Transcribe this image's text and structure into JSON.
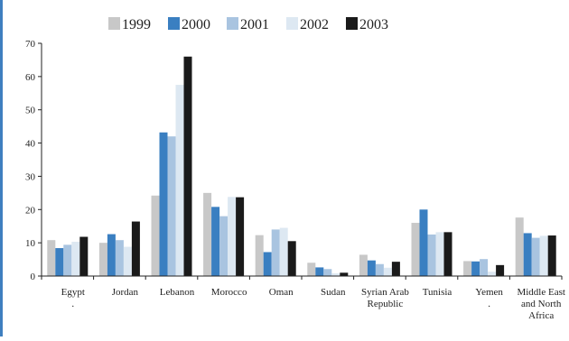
{
  "chart_data": {
    "type": "bar",
    "title": "",
    "xlabel": "",
    "ylabel": "",
    "ylim": [
      0,
      70
    ],
    "yticks": [
      0,
      10,
      20,
      30,
      40,
      50,
      60,
      70
    ],
    "legend_position": "top",
    "grid": false,
    "categories": [
      [
        "Egypt",
        "."
      ],
      [
        "Jordan"
      ],
      [
        "Lebanon"
      ],
      [
        "Morocco"
      ],
      [
        "Oman"
      ],
      [
        "Sudan"
      ],
      [
        "Syrian Arab",
        "Republic"
      ],
      [
        "Tunisia"
      ],
      [
        "Yemen",
        "."
      ],
      [
        "Middle East",
        "and North",
        "Africa"
      ]
    ],
    "series": [
      {
        "name": "1999",
        "color": "#c8c8c8",
        "values": [
          10.8,
          10,
          24.2,
          25,
          12.3,
          4,
          6.4,
          16,
          4.5,
          17.6
        ]
      },
      {
        "name": "2000",
        "color": "#3a7fc1",
        "values": [
          8.4,
          12.6,
          43.2,
          20.8,
          7.2,
          2.6,
          4.7,
          20,
          4.4,
          12.9
        ]
      },
      {
        "name": "2001",
        "color": "#a9c4e0",
        "values": [
          9.4,
          10.8,
          42,
          18,
          14,
          2.1,
          3.6,
          12.5,
          5.1,
          11.5
        ]
      },
      {
        "name": "2002",
        "color": "#dde8f2",
        "values": [
          10.3,
          8.8,
          57.5,
          23.8,
          14.5,
          0.8,
          2.5,
          13.2,
          1.3,
          12.1
        ]
      },
      {
        "name": "2003",
        "color": "#1a1a1a",
        "values": [
          11.8,
          16.4,
          66,
          23.7,
          10.5,
          1,
          4.3,
          13.2,
          3.3,
          12.2
        ]
      }
    ]
  }
}
